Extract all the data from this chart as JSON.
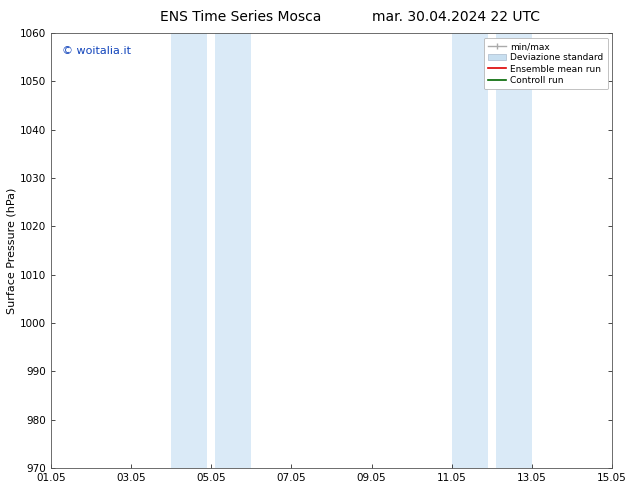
{
  "title_left": "ENS Time Series Mosca",
  "title_right": "mar. 30.04.2024 22 UTC",
  "ylabel": "Surface Pressure (hPa)",
  "ylim": [
    970,
    1060
  ],
  "yticks": [
    970,
    980,
    990,
    1000,
    1010,
    1020,
    1030,
    1040,
    1050,
    1060
  ],
  "xticks": [
    "01.05",
    "03.05",
    "05.05",
    "07.05",
    "09.05",
    "11.05",
    "13.05",
    "15.05"
  ],
  "xtick_positions": [
    0,
    2,
    4,
    6,
    8,
    10,
    12,
    14
  ],
  "shaded_bands": [
    {
      "x_start": 3.0,
      "x_end": 3.9,
      "color": "#daeaf7"
    },
    {
      "x_start": 4.1,
      "x_end": 5.0,
      "color": "#daeaf7"
    },
    {
      "x_start": 10.0,
      "x_end": 10.9,
      "color": "#daeaf7"
    },
    {
      "x_start": 11.1,
      "x_end": 12.0,
      "color": "#daeaf7"
    }
  ],
  "watermark": "© woitalia.it",
  "watermark_color": "#1144bb",
  "bg_color": "#ffffff",
  "plot_bg_color": "#ffffff",
  "legend_items": [
    {
      "label": "min/max"
    },
    {
      "label": "Deviazione standard"
    },
    {
      "label": "Ensemble mean run"
    },
    {
      "label": "Controll run"
    }
  ],
  "legend_colors": [
    "#aaaaaa",
    "#c8dff0",
    "#dd0000",
    "#006600"
  ],
  "font_family": "DejaVu Sans",
  "title_fontsize": 10,
  "axis_label_fontsize": 8,
  "tick_fontsize": 7.5,
  "watermark_fontsize": 8
}
